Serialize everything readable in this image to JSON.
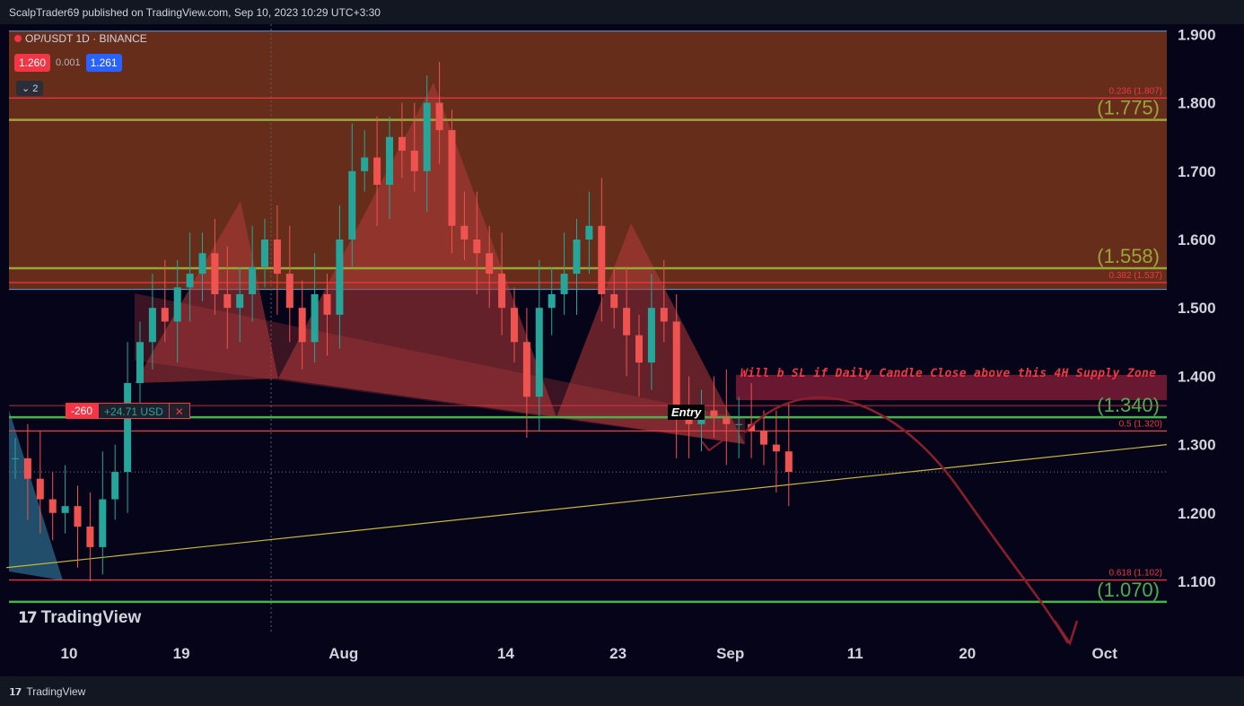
{
  "header": {
    "published_by": "ScalpTrader69 published on TradingView.com, Sep 10, 2023 10:29 UTC+3:30"
  },
  "legend": {
    "symbol": "OP/USDT 1D · BINANCE",
    "sell_price": "1.260",
    "spread": "0.001",
    "buy_price": "1.261",
    "layers_badge": "2"
  },
  "watermark": "TradingView",
  "footer": {
    "brand": "TradingView"
  },
  "position": {
    "qty": "-260",
    "pnl": "+24.71 USD",
    "close": "✕"
  },
  "annotations": {
    "entry": "Entry",
    "sl_note": "Will b SL if Daily Candle Close above this 4H Supply Zone"
  },
  "colors": {
    "background": "#050418",
    "supply_zone": "#6b2f1a",
    "up_candle": "#26a69a",
    "down_candle": "#ef5350",
    "fib_line": "#f23645",
    "green_level": "#4caf50",
    "olive_level": "#9aa53a",
    "trend_line": "#c9b73a",
    "pattern_fill": "#b53a3a",
    "curve_arrow": "#8b1f2a"
  },
  "chart_data": {
    "type": "candlestick",
    "symbol": "OP/USDT",
    "timeframe": "1D",
    "exchange": "BINANCE",
    "ylim": [
      1.03,
      1.93
    ],
    "y_ticks": [
      "1.900",
      "1.800",
      "1.700",
      "1.600",
      "1.500",
      "1.400",
      "1.300",
      "1.200",
      "1.100"
    ],
    "x_ticks": [
      "10",
      "19",
      "Aug",
      "14",
      "23",
      "Sep",
      "11",
      "20",
      "Oct"
    ],
    "x_tick_days": [
      0,
      9,
      22,
      35,
      44,
      53,
      63,
      72,
      83
    ],
    "last_day": 62,
    "last_price": 1.26,
    "fib_levels": [
      {
        "label": "0.236 (1.807)",
        "value": 1.807
      },
      {
        "label": "0.382 (1.537)",
        "value": 1.537
      },
      {
        "label": "0.5 (1.320)",
        "value": 1.32
      },
      {
        "label": "0.618 (1.102)",
        "value": 1.102
      }
    ],
    "key_levels": [
      {
        "label": "(1.775)",
        "value": 1.775,
        "color": "olive"
      },
      {
        "label": "(1.558)",
        "value": 1.558,
        "color": "olive"
      },
      {
        "label": "(1.340)",
        "value": 1.34,
        "color": "green"
      },
      {
        "label": "(1.070)",
        "value": 1.07,
        "color": "green"
      }
    ],
    "supply_zone": {
      "top": 1.905,
      "bottom": 1.527
    },
    "supply_zone_4h": {
      "top": 1.402,
      "bottom": 1.365
    },
    "trend_line": {
      "start": {
        "day": 0,
        "price": 1.12
      },
      "end": {
        "day": 85,
        "price": 1.3
      }
    },
    "entry_price": 1.357,
    "closes": [
      1.28,
      1.25,
      1.22,
      1.2,
      1.21,
      1.18,
      1.15,
      1.22,
      1.26,
      1.39,
      1.45,
      1.5,
      1.48,
      1.53,
      1.55,
      1.58,
      1.52,
      1.5,
      1.52,
      1.56,
      1.6,
      1.55,
      1.5,
      1.45,
      1.52,
      1.49,
      1.6,
      1.7,
      1.72,
      1.68,
      1.75,
      1.73,
      1.7,
      1.8,
      1.76,
      1.62,
      1.6,
      1.58,
      1.55,
      1.5,
      1.45,
      1.37,
      1.5,
      1.52,
      1.55,
      1.6,
      1.62,
      1.52,
      1.5,
      1.46,
      1.42,
      1.5,
      1.48,
      1.34,
      1.33,
      1.35,
      1.34,
      1.33,
      1.33,
      1.32,
      1.3,
      1.29,
      1.26
    ]
  }
}
